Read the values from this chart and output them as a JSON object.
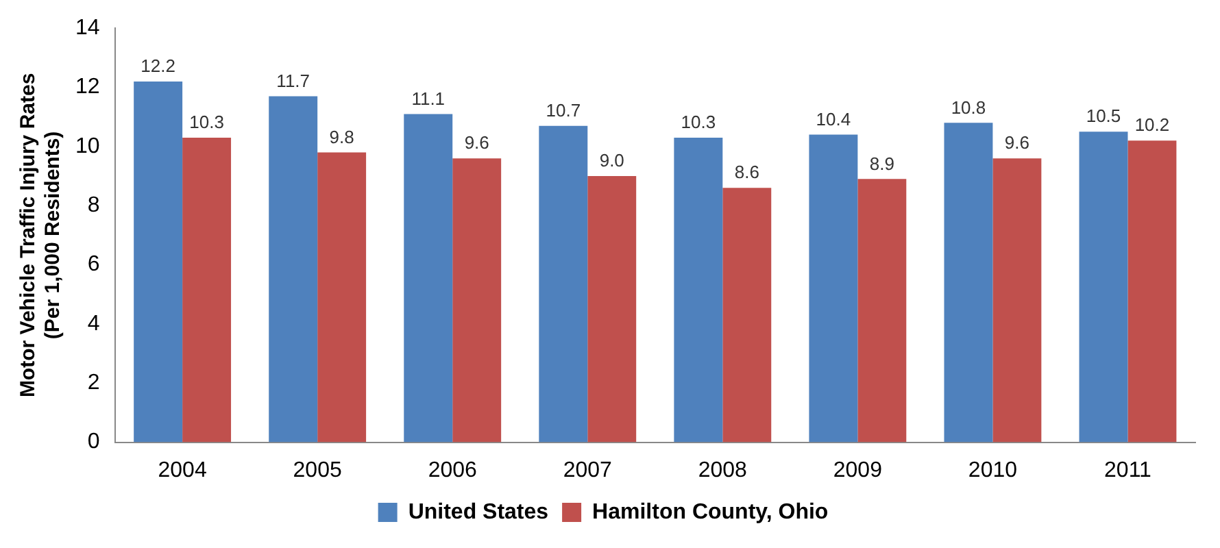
{
  "chart_data": {
    "type": "bar",
    "ylabel": "Motor Vehicle Traffic Injury Rates\n(Per 1,000 Residents)",
    "categories": [
      "2004",
      "2005",
      "2006",
      "2007",
      "2008",
      "2009",
      "2010",
      "2011"
    ],
    "series": [
      {
        "name": "United States",
        "color": "#4f81bd",
        "values": [
          12.2,
          11.7,
          11.1,
          10.7,
          10.3,
          10.4,
          10.8,
          10.5
        ],
        "value_labels": [
          "12.2",
          "11.7",
          "11.1",
          "10.7",
          "10.3",
          "10.4",
          "10.8",
          "10.5"
        ]
      },
      {
        "name": "Hamilton County, Ohio",
        "color": "#c0504d",
        "values": [
          10.3,
          9.8,
          9.6,
          9.0,
          8.6,
          8.9,
          9.6,
          10.2
        ],
        "value_labels": [
          "10.3",
          "9.8",
          "9.6",
          "9.0",
          "8.6",
          "8.9",
          "9.6",
          "10.2"
        ]
      }
    ],
    "ylim": [
      0,
      14
    ],
    "yticks": [
      0,
      2,
      4,
      6,
      8,
      10,
      12,
      14
    ],
    "grid": false,
    "legend": "bottom"
  }
}
